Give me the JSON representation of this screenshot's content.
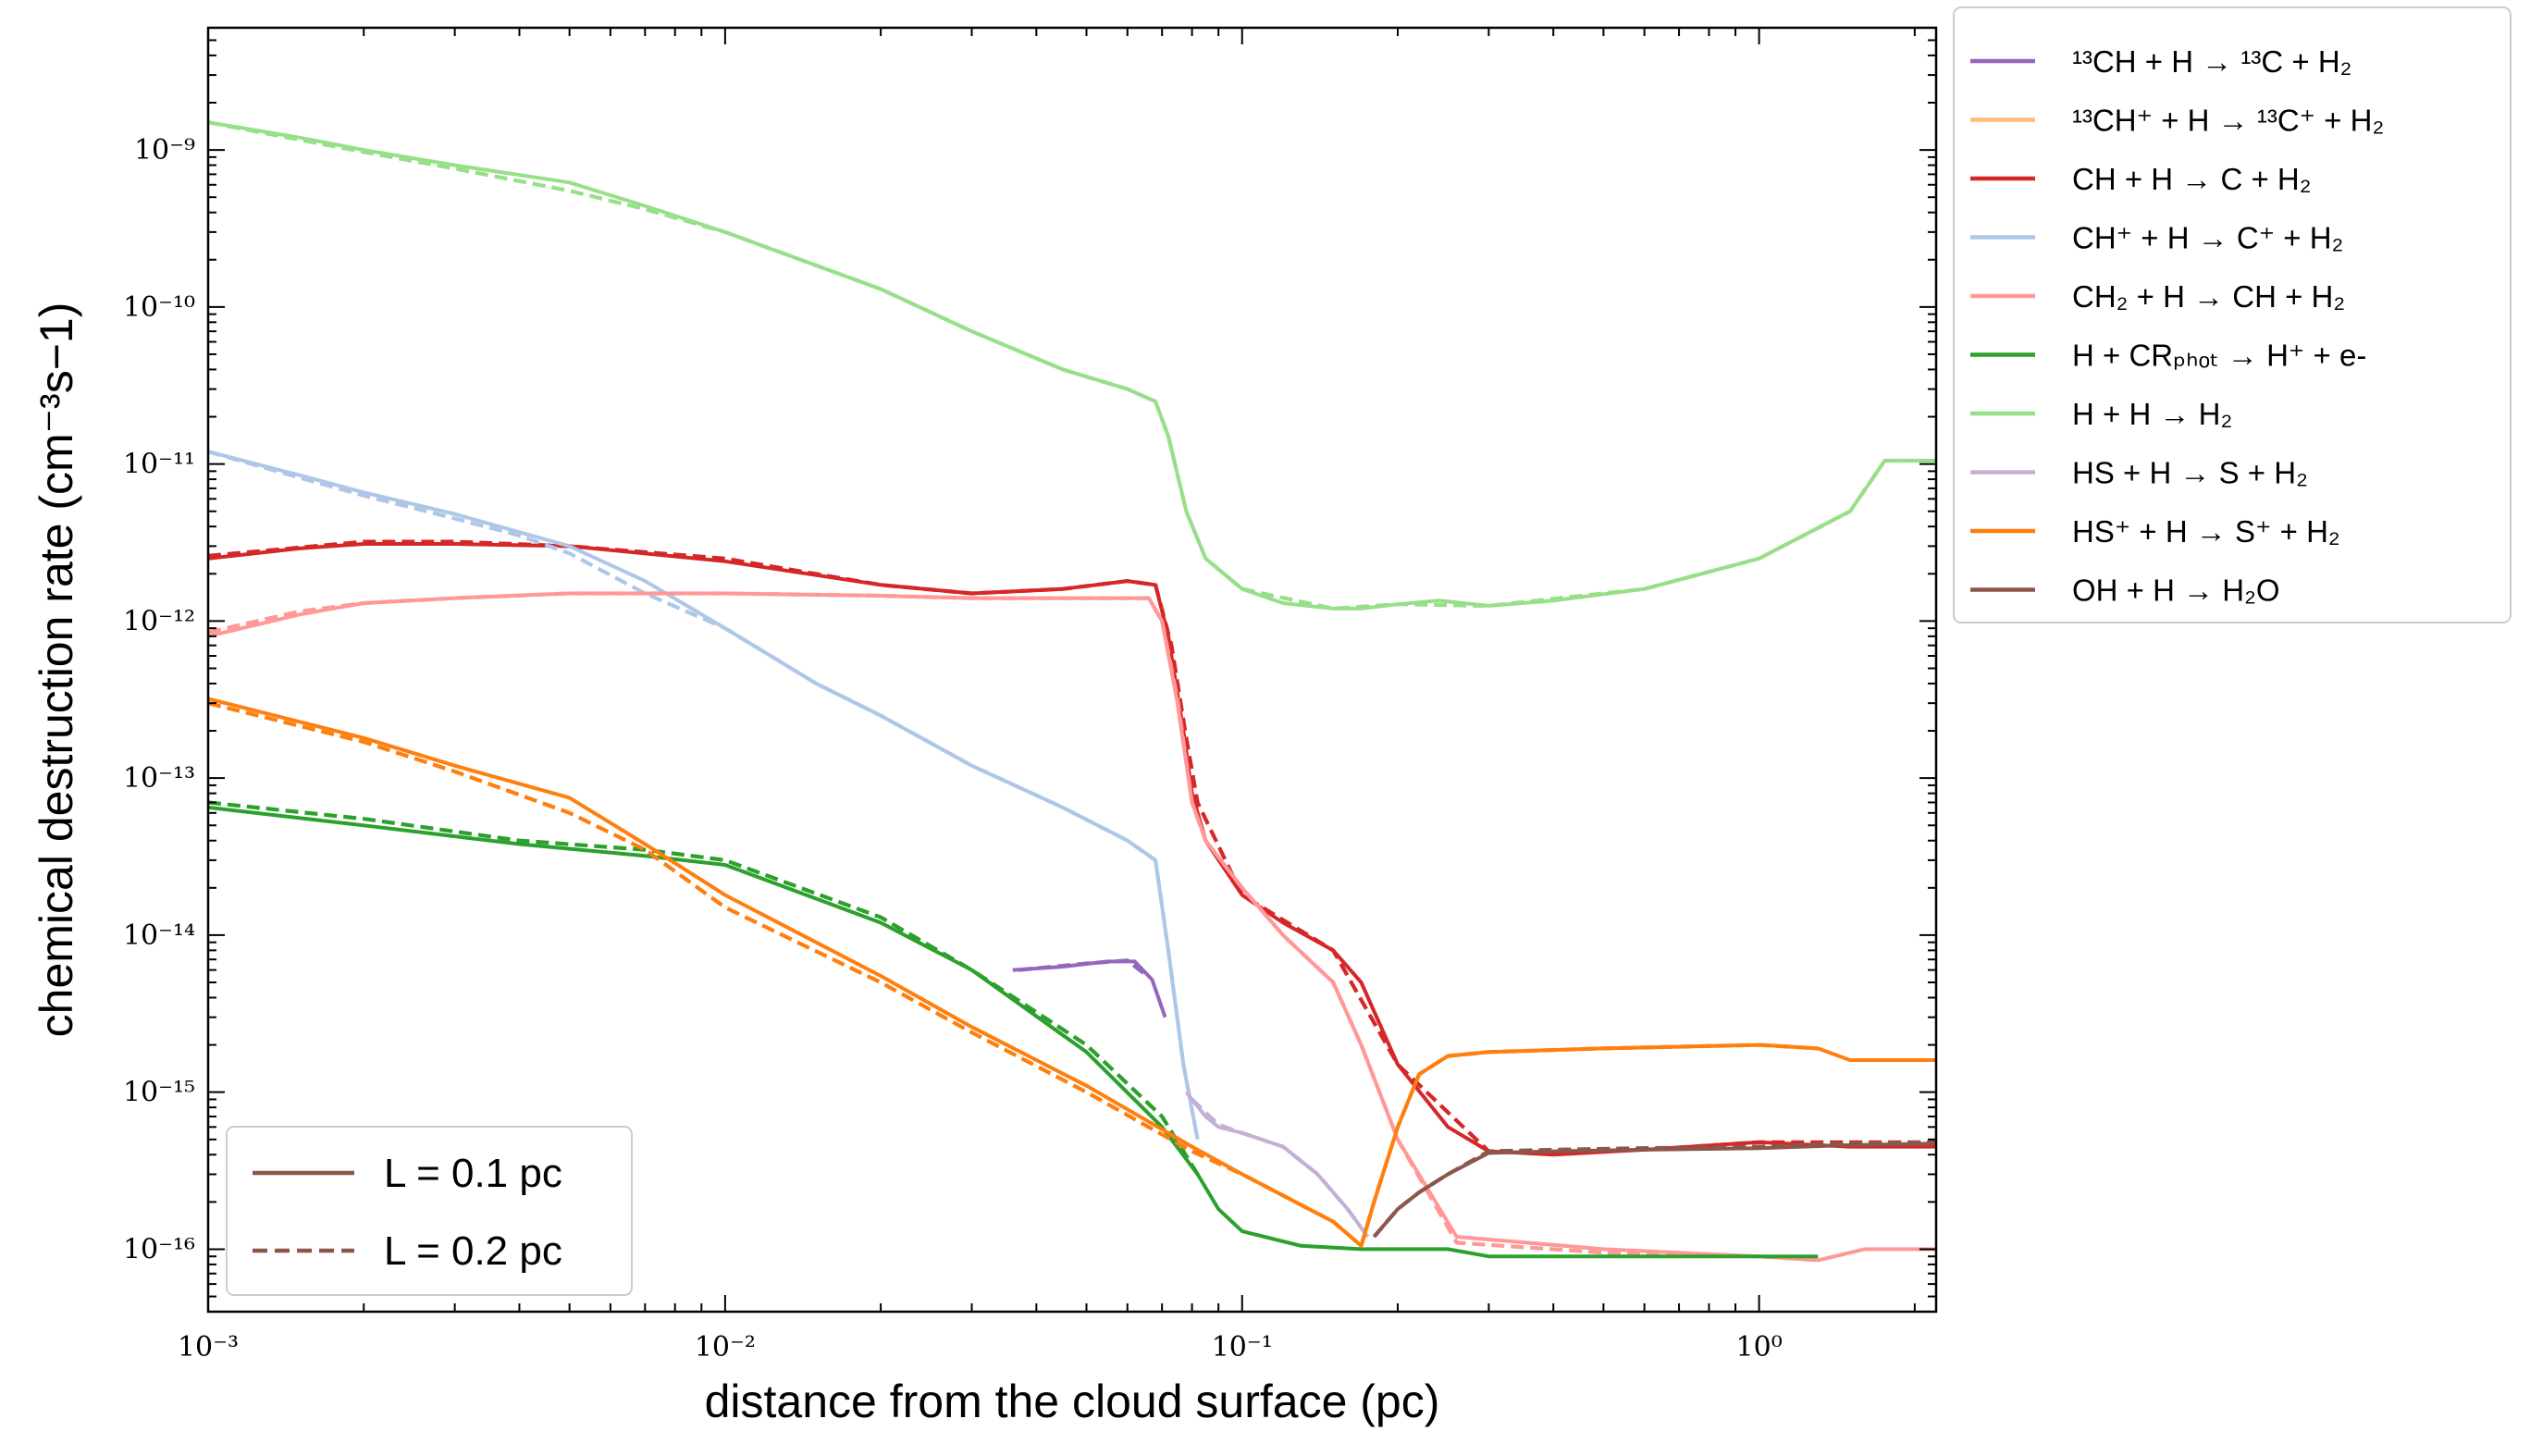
{
  "chart_data": {
    "type": "line",
    "xlabel": "distance from the cloud surface (pc)",
    "ylabel": "chemical destruction rate (cm⁻³s−1)",
    "xscale": "log",
    "yscale": "log",
    "xlim": [
      0.001,
      2.2
    ],
    "ylim": [
      4e-17,
      6e-09
    ],
    "x_ticks": [
      {
        "value": 0.001,
        "label": "10⁻³"
      },
      {
        "value": 0.01,
        "label": "10⁻²"
      },
      {
        "value": 0.1,
        "label": "10⁻¹"
      },
      {
        "value": 1,
        "label": "10⁰"
      }
    ],
    "y_ticks": [
      {
        "value": 1e-16,
        "label": "10⁻¹⁶"
      },
      {
        "value": 1e-15,
        "label": "10⁻¹⁵"
      },
      {
        "value": 1e-14,
        "label": "10⁻¹⁴"
      },
      {
        "value": 1e-13,
        "label": "10⁻¹³"
      },
      {
        "value": 1e-12,
        "label": "10⁻¹²"
      },
      {
        "value": 1e-11,
        "label": "10⁻¹¹"
      },
      {
        "value": 1e-10,
        "label": "10⁻¹⁰"
      },
      {
        "value": 1e-09,
        "label": "10⁻⁹"
      }
    ],
    "legend_placement": "outside upper right",
    "style_legend_placement": "lower left",
    "line_styles": [
      {
        "label": "L = 0.1 pc",
        "dash": "solid"
      },
      {
        "label": "L = 0.2 pc",
        "dash": "dashed"
      }
    ],
    "series": [
      {
        "name": "¹³CH + H → ¹³C + H₂",
        "color": "#9467bd",
        "x": [
          0.036,
          0.045,
          0.055,
          0.062,
          0.067,
          0.071
        ],
        "y": [
          6e-15,
          6.3e-15,
          6.8e-15,
          6.8e-15,
          5.2e-15,
          3e-15
        ],
        "x2": [
          0.037,
          0.05,
          0.06,
          0.066
        ],
        "y2": [
          6e-15,
          6.6e-15,
          6.9e-15,
          5.4e-15
        ]
      },
      {
        "name": "¹³CH⁺ + H → ¹³C⁺ + H₂",
        "color": "#ffbb78",
        "x": [],
        "y": []
      },
      {
        "name": "CH + H → C + H₂",
        "color": "#d62728",
        "x": [
          0.001,
          0.0015,
          0.002,
          0.003,
          0.005,
          0.01,
          0.02,
          0.03,
          0.045,
          0.06,
          0.068,
          0.072,
          0.077,
          0.08,
          0.085,
          0.1,
          0.12,
          0.15,
          0.17,
          0.2,
          0.25,
          0.3,
          0.4,
          0.6,
          1.0,
          1.5,
          2.2
        ],
        "y": [
          2.5e-12,
          2.9e-12,
          3.1e-12,
          3.1e-12,
          3e-12,
          2.4e-12,
          1.7e-12,
          1.5e-12,
          1.6e-12,
          1.8e-12,
          1.7e-12,
          8e-13,
          2e-13,
          8e-14,
          4e-14,
          1.8e-14,
          1.2e-14,
          8e-15,
          5e-15,
          1.5e-15,
          6e-16,
          4.2e-16,
          4e-16,
          4.3e-16,
          4.8e-16,
          4.5e-16,
          4.5e-16
        ],
        "x2": [
          0.001,
          0.002,
          0.003,
          0.005,
          0.01,
          0.02,
          0.03,
          0.045,
          0.06,
          0.068,
          0.073,
          0.078,
          0.082,
          0.1,
          0.15,
          0.2,
          0.3,
          0.6,
          1.0,
          2.2
        ],
        "y2": [
          2.6e-12,
          3.2e-12,
          3.2e-12,
          3e-12,
          2.5e-12,
          1.7e-12,
          1.5e-12,
          1.6e-12,
          1.8e-12,
          1.7e-12,
          7e-13,
          1.8e-13,
          7e-14,
          1.8e-14,
          8e-15,
          1.5e-15,
          4.2e-16,
          4.3e-16,
          4.8e-16,
          4.8e-16
        ]
      },
      {
        "name": "CH⁺ + H → C⁺ + H₂",
        "color": "#aec7e8",
        "x": [
          0.001,
          0.0015,
          0.002,
          0.003,
          0.005,
          0.007,
          0.01,
          0.015,
          0.02,
          0.03,
          0.045,
          0.06,
          0.068,
          0.072,
          0.077,
          0.082
        ],
        "y": [
          1.2e-11,
          8.5e-12,
          6.6e-12,
          4.8e-12,
          3e-12,
          1.8e-12,
          9e-13,
          4e-13,
          2.5e-13,
          1.2e-13,
          6.5e-14,
          4e-14,
          3e-14,
          8e-15,
          1.5e-15,
          5e-16
        ],
        "x2": [
          0.001,
          0.0015,
          0.002,
          0.003,
          0.004,
          0.005,
          0.007,
          0.01,
          0.015,
          0.02,
          0.03,
          0.045,
          0.06,
          0.068,
          0.072,
          0.077,
          0.082
        ],
        "y2": [
          1.2e-11,
          8.2e-12,
          6.3e-12,
          4.5e-12,
          3.5e-12,
          2.7e-12,
          1.5e-12,
          9e-13,
          4e-13,
          2.5e-13,
          1.2e-13,
          6.5e-14,
          4e-14,
          3e-14,
          8e-15,
          1.5e-15,
          5e-16
        ]
      },
      {
        "name": "CH₂ + H → CH + H₂",
        "color": "#ff9896",
        "x": [
          0.001,
          0.0015,
          0.002,
          0.003,
          0.005,
          0.007,
          0.01,
          0.02,
          0.03,
          0.045,
          0.06,
          0.066,
          0.07,
          0.075,
          0.08,
          0.085,
          0.1,
          0.12,
          0.15,
          0.17,
          0.2,
          0.26,
          0.5,
          1.0,
          1.3,
          1.6,
          2.2
        ],
        "y": [
          8e-13,
          1.1e-12,
          1.3e-12,
          1.4e-12,
          1.5e-12,
          1.5e-12,
          1.5e-12,
          1.45e-12,
          1.4e-12,
          1.4e-12,
          1.4e-12,
          1.4e-12,
          1e-12,
          3e-13,
          7e-14,
          4e-14,
          2e-14,
          1e-14,
          5e-15,
          2e-15,
          5e-16,
          1.2e-16,
          1e-16,
          9e-17,
          8.5e-17,
          1e-16,
          1e-16
        ],
        "x2": [
          0.001,
          0.0015,
          0.002,
          0.003,
          0.005,
          0.007,
          0.01,
          0.02,
          0.03,
          0.045,
          0.06,
          0.066,
          0.07,
          0.075,
          0.08,
          0.085,
          0.1,
          0.12,
          0.15,
          0.17,
          0.2,
          0.26,
          0.5,
          1.0,
          1.3
        ],
        "y2": [
          8.5e-13,
          1.15e-12,
          1.3e-12,
          1.4e-12,
          1.5e-12,
          1.5e-12,
          1.5e-12,
          1.45e-12,
          1.4e-12,
          1.4e-12,
          1.4e-12,
          1.4e-12,
          1e-12,
          3.2e-13,
          7e-14,
          4e-14,
          2e-14,
          1e-14,
          5e-15,
          2e-15,
          5e-16,
          1.1e-16,
          9.5e-17,
          9e-17,
          8.5e-17
        ]
      },
      {
        "name": "H + CRₚₕₒₜ → H⁺ + e-",
        "color": "#2ca02c",
        "x": [
          0.001,
          0.002,
          0.004,
          0.007,
          0.01,
          0.02,
          0.03,
          0.05,
          0.07,
          0.082,
          0.09,
          0.1,
          0.13,
          0.17,
          0.25,
          0.3,
          0.5,
          1.0,
          1.3
        ],
        "y": [
          6.5e-14,
          5e-14,
          3.8e-14,
          3.2e-14,
          2.8e-14,
          1.2e-14,
          6e-15,
          1.8e-15,
          6e-16,
          3e-16,
          1.8e-16,
          1.3e-16,
          1.05e-16,
          1e-16,
          1e-16,
          9e-17,
          9e-17,
          9e-17,
          9e-17
        ],
        "x2": [
          0.001,
          0.002,
          0.004,
          0.007,
          0.01,
          0.02,
          0.03,
          0.05,
          0.07,
          0.082
        ],
        "y2": [
          7e-14,
          5.5e-14,
          4e-14,
          3.5e-14,
          3e-14,
          1.3e-14,
          6e-15,
          2e-15,
          7e-16,
          3e-16
        ]
      },
      {
        "name": "H + H → H₂",
        "color": "#98df8a",
        "x": [
          0.001,
          0.0015,
          0.002,
          0.003,
          0.005,
          0.007,
          0.01,
          0.02,
          0.03,
          0.045,
          0.06,
          0.068,
          0.072,
          0.078,
          0.085,
          0.1,
          0.12,
          0.15,
          0.17,
          0.2,
          0.24,
          0.3,
          0.4,
          0.6,
          1.0,
          1.5,
          1.75,
          2.2
        ],
        "y": [
          1.5e-09,
          1.2e-09,
          1e-09,
          8e-10,
          6.2e-10,
          4.4e-10,
          3e-10,
          1.3e-10,
          7e-11,
          4e-11,
          3e-11,
          2.5e-11,
          1.5e-11,
          5e-12,
          2.5e-12,
          1.6e-12,
          1.3e-12,
          1.2e-12,
          1.2e-12,
          1.28e-12,
          1.35e-12,
          1.25e-12,
          1.35e-12,
          1.6e-12,
          2.5e-12,
          5e-12,
          1.05e-11,
          1.05e-11
        ],
        "x2": [
          0.001,
          0.002,
          0.003,
          0.005,
          0.007,
          0.01,
          0.02,
          0.03,
          0.045,
          0.06,
          0.068,
          0.072,
          0.078,
          0.085,
          0.1,
          0.15,
          0.2,
          0.3,
          0.6,
          1.0,
          1.5,
          1.75,
          2.2
        ],
        "y2": [
          1.5e-09,
          9.7e-10,
          7.6e-10,
          5.5e-10,
          4.2e-10,
          3e-10,
          1.3e-10,
          7e-11,
          4e-11,
          3e-11,
          2.5e-11,
          1.5e-11,
          5e-12,
          2.5e-12,
          1.6e-12,
          1.2e-12,
          1.28e-12,
          1.25e-12,
          1.6e-12,
          2.5e-12,
          5e-12,
          1.05e-11,
          1.05e-11
        ]
      },
      {
        "name": "HS + H → S + H₂",
        "color": "#c5b0d5",
        "x": [
          0.078,
          0.085,
          0.09,
          0.1,
          0.12,
          0.14,
          0.16,
          0.175
        ],
        "y": [
          1e-15,
          7e-16,
          6e-16,
          5.5e-16,
          4.5e-16,
          3e-16,
          1.8e-16,
          1.2e-16
        ],
        "x2": [
          0.08,
          0.09,
          0.1,
          0.12,
          0.14,
          0.16,
          0.175
        ],
        "y2": [
          9e-16,
          6.2e-16,
          5.5e-16,
          4.5e-16,
          3e-16,
          1.8e-16,
          1.2e-16
        ]
      },
      {
        "name": "HS⁺ + H → S⁺ + H₂",
        "color": "#ff7f0e",
        "x": [
          0.001,
          0.002,
          0.003,
          0.005,
          0.007,
          0.01,
          0.02,
          0.03,
          0.05,
          0.08,
          0.1,
          0.15,
          0.17,
          0.18,
          0.2,
          0.22,
          0.25,
          0.3,
          0.5,
          1.0,
          1.3,
          1.5,
          2.2
        ],
        "y": [
          3.2e-13,
          1.8e-13,
          1.2e-13,
          7.5e-14,
          3.8e-14,
          1.8e-14,
          5.5e-15,
          2.6e-15,
          1.1e-15,
          4.5e-16,
          3e-16,
          1.5e-16,
          1.05e-16,
          2e-16,
          6e-16,
          1.3e-15,
          1.7e-15,
          1.8e-15,
          1.9e-15,
          2e-15,
          1.9e-15,
          1.6e-15,
          1.6e-15
        ],
        "x2": [
          0.001,
          0.002,
          0.003,
          0.005,
          0.007,
          0.01,
          0.02,
          0.03,
          0.05,
          0.08,
          0.1,
          0.15,
          0.17,
          0.18,
          0.2,
          0.22,
          0.25,
          0.3,
          0.5,
          1.0,
          1.3
        ],
        "y2": [
          3e-13,
          1.7e-13,
          1.1e-13,
          6e-14,
          3.5e-14,
          1.5e-14,
          5e-15,
          2.4e-15,
          1e-15,
          4.2e-16,
          3e-16,
          1.5e-16,
          1.05e-16,
          2e-16,
          6e-16,
          1.3e-15,
          1.7e-15,
          1.8e-15,
          1.9e-15,
          2e-15,
          1.9e-15
        ]
      },
      {
        "name": "OH + H → H₂O",
        "color": "#8c564b",
        "x": [
          0.18,
          0.2,
          0.22,
          0.25,
          0.3,
          0.4,
          0.6,
          1.0,
          1.5,
          2.2
        ],
        "y": [
          1.2e-16,
          1.8e-16,
          2.3e-16,
          3e-16,
          4.1e-16,
          4.2e-16,
          4.3e-16,
          4.4e-16,
          4.6e-16,
          4.7e-16
        ],
        "x2": [
          0.18,
          0.2,
          0.22,
          0.25,
          0.3,
          0.4,
          0.6,
          1.0,
          1.5,
          2.2
        ],
        "y2": [
          1.2e-16,
          1.8e-16,
          2.3e-16,
          3e-16,
          4.2e-16,
          4.3e-16,
          4.4e-16,
          4.5e-16,
          4.7e-16,
          4.8e-16
        ]
      }
    ]
  }
}
